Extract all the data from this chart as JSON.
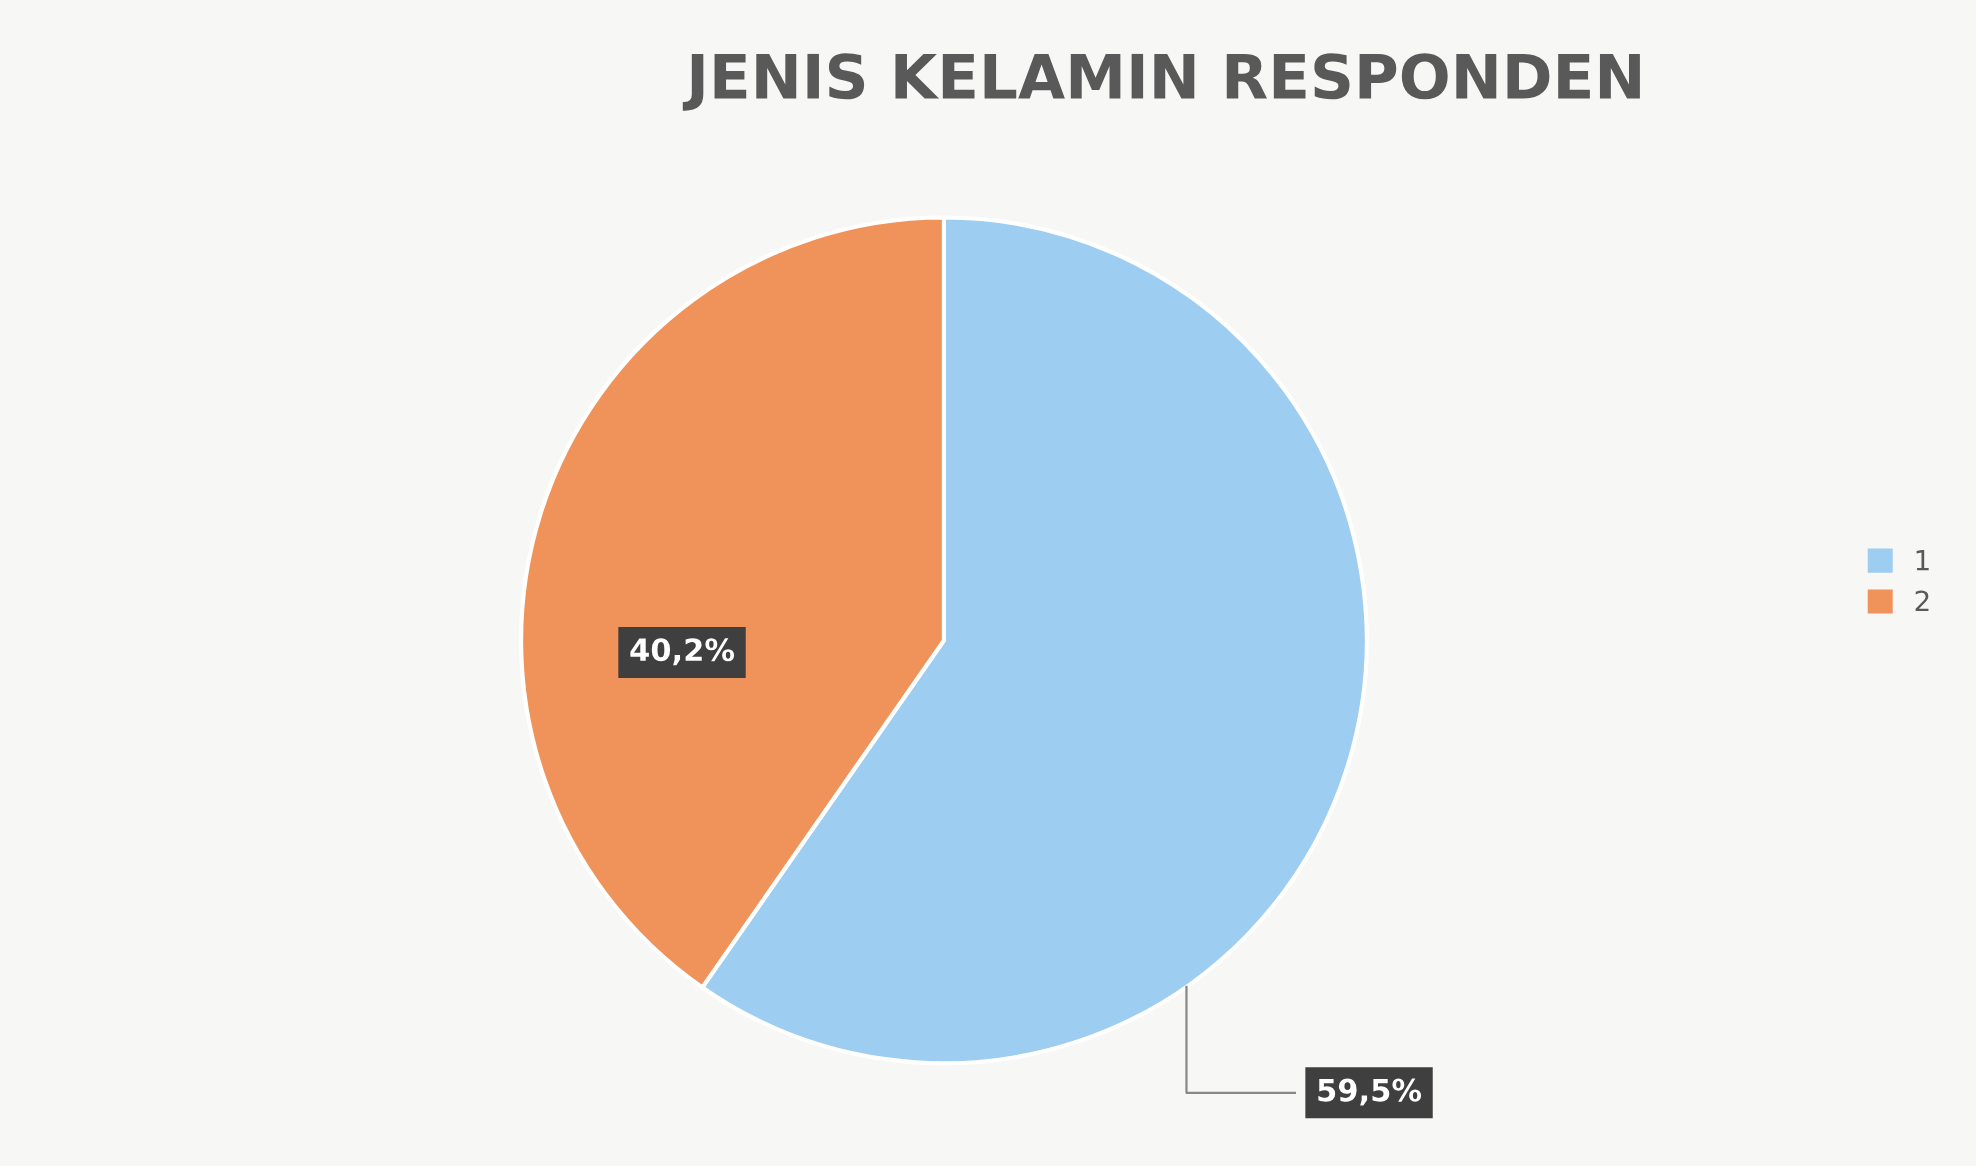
{
  "chart_data": {
    "type": "pie",
    "title": "JENIS KELAMIN RESPONDEN",
    "categories": [
      "1",
      "2"
    ],
    "values": [
      59.5,
      40.2
    ],
    "colors": [
      "#9dcdf0",
      "#f0935a"
    ],
    "value_labels": [
      "59,5%",
      "40,2%"
    ],
    "legend": "right"
  }
}
